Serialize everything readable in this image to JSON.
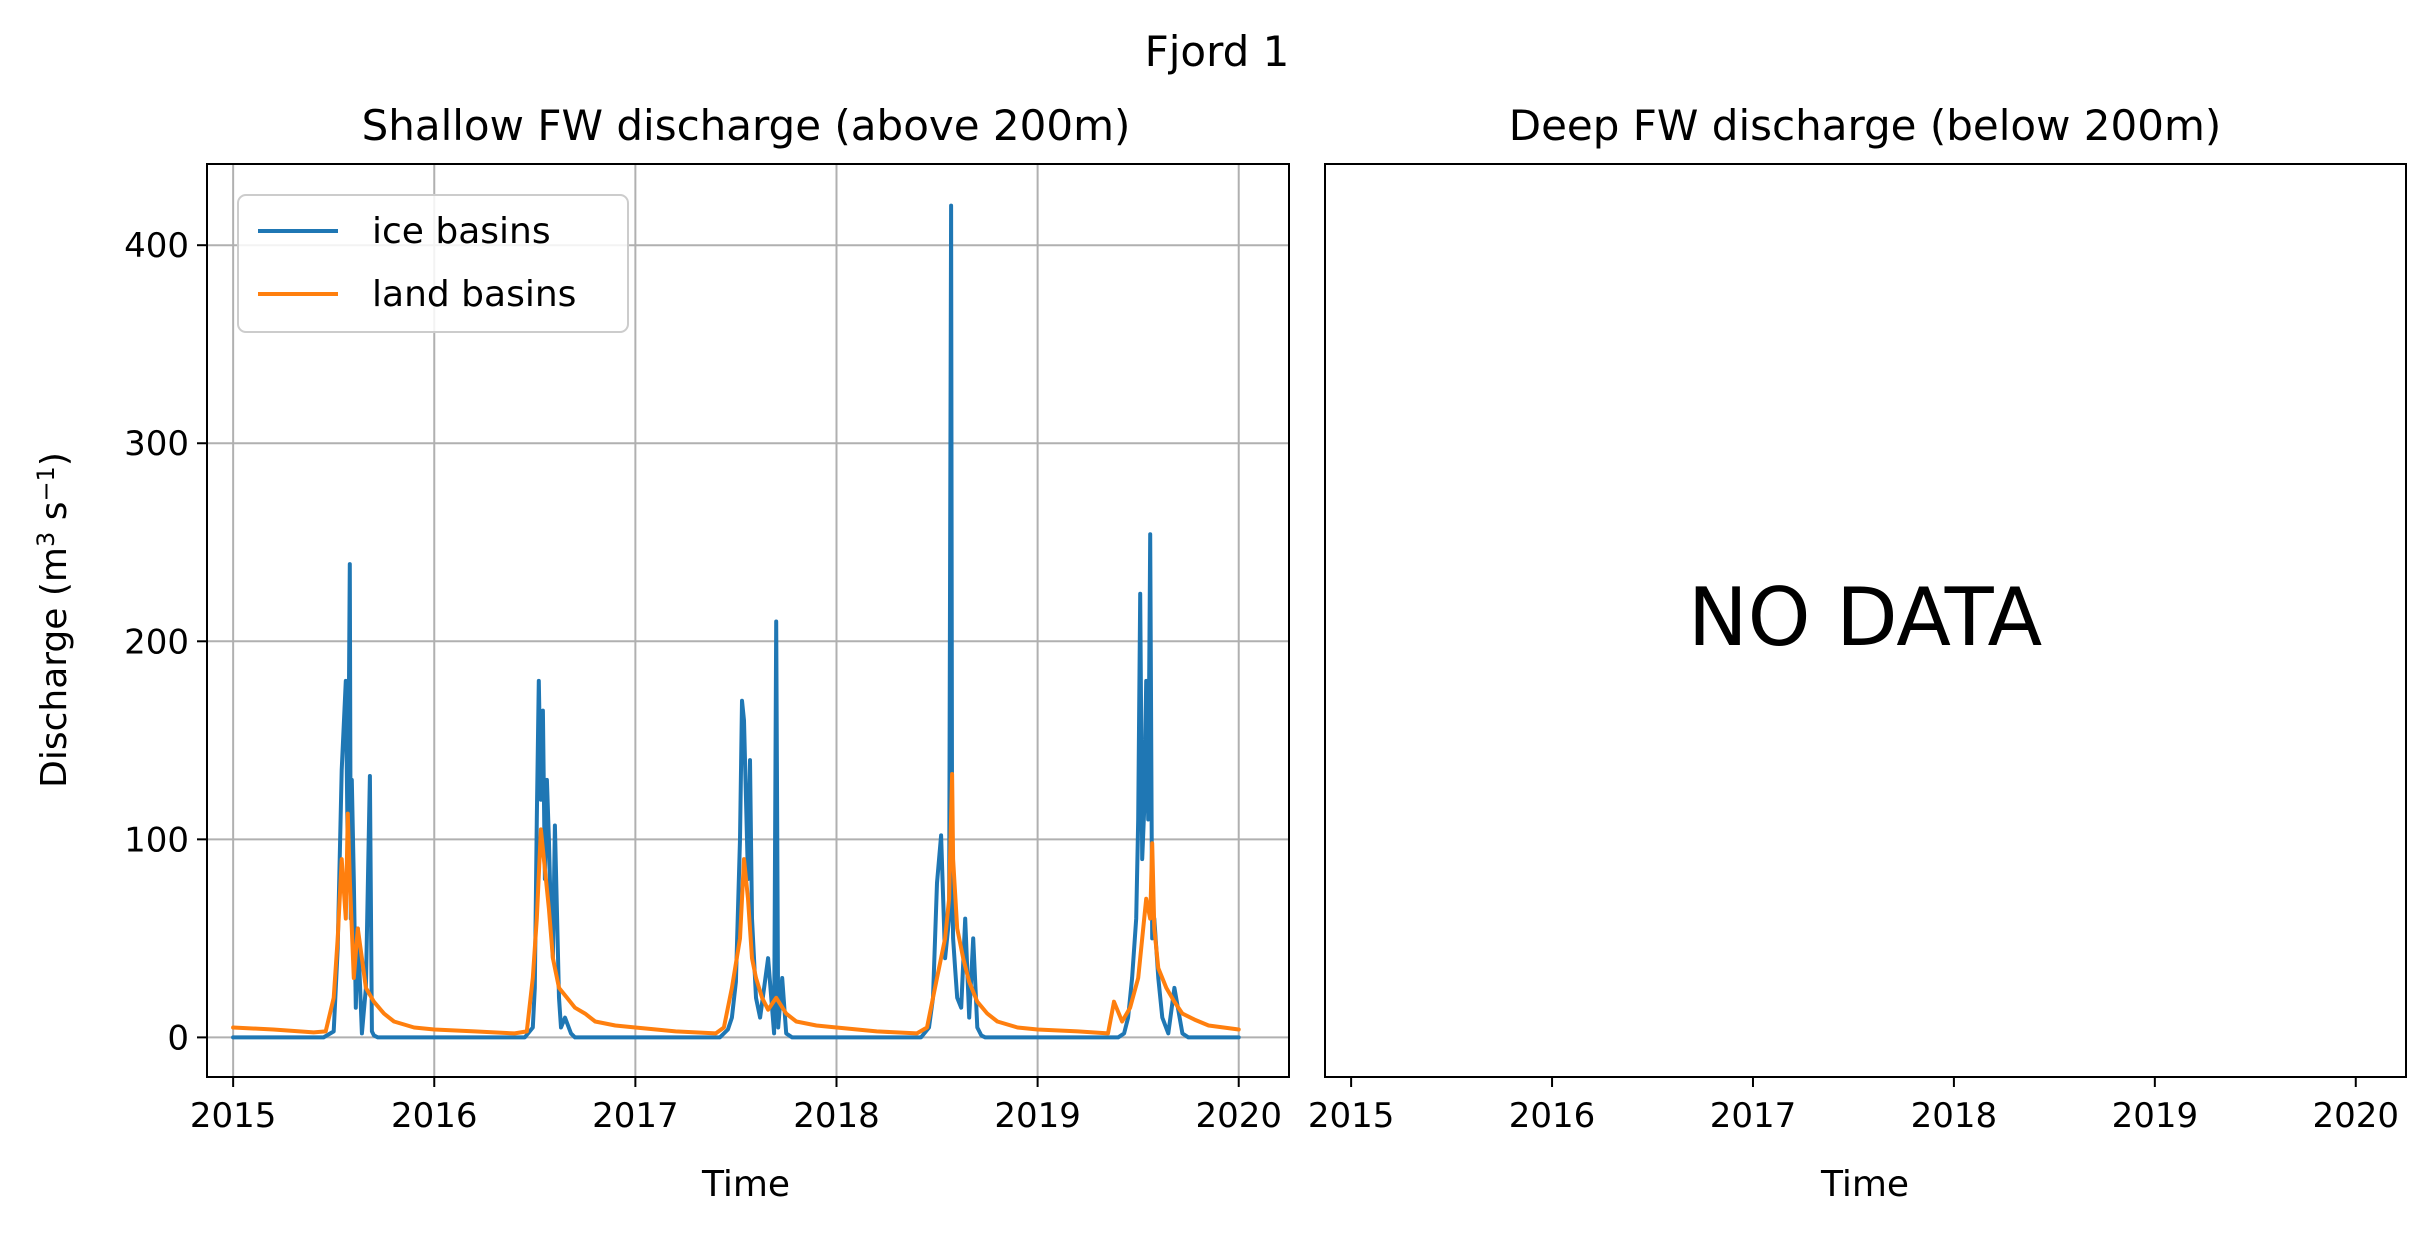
{
  "figure": {
    "suptitle": "Fjord 1"
  },
  "colors": {
    "ice": "#1f77b4",
    "land": "#ff7f0e",
    "grid": "#b0b0b0",
    "axes": "#000000"
  },
  "chart_data": [
    {
      "type": "line",
      "title": "Shallow FW discharge (above 200m)",
      "xlabel": "Time",
      "ylabel_main": "Discharge (m",
      "ylabel_sup3": "3",
      "ylabel_mid": " s",
      "ylabel_supneg": "−1",
      "ylabel_end": ")",
      "xlim": [
        2014.87,
        2020.25
      ],
      "ylim": [
        -20,
        441
      ],
      "x_ticks": [
        2015,
        2016,
        2017,
        2018,
        2019,
        2020
      ],
      "x_tick_labels": [
        "2015",
        "2016",
        "2017",
        "2018",
        "2019",
        "2020"
      ],
      "y_ticks": [
        0,
        100,
        200,
        300,
        400
      ],
      "y_tick_labels": [
        "0",
        "100",
        "200",
        "300",
        "400"
      ],
      "grid": true,
      "legend_position": "top-left",
      "series": [
        {
          "name": "ice basins",
          "color_key": "ice",
          "x": [
            2015.0,
            2015.45,
            2015.5,
            2015.52,
            2015.54,
            2015.56,
            2015.57,
            2015.58,
            2015.585,
            2015.59,
            2015.6,
            2015.61,
            2015.62,
            2015.64,
            2015.66,
            2015.68,
            2015.69,
            2015.7,
            2015.72,
            2015.75,
            2015.8,
            2016.45,
            2016.49,
            2016.5,
            2016.51,
            2016.52,
            2016.53,
            2016.54,
            2016.55,
            2016.56,
            2016.57,
            2016.58,
            2016.59,
            2016.6,
            2016.62,
            2016.63,
            2016.65,
            2016.68,
            2016.7,
            2016.74,
            2016.8,
            2017.42,
            2017.46,
            2017.48,
            2017.5,
            2017.52,
            2017.53,
            2017.54,
            2017.56,
            2017.57,
            2017.58,
            2017.6,
            2017.62,
            2017.66,
            2017.69,
            2017.7,
            2017.71,
            2017.73,
            2017.75,
            2017.78,
            2018.42,
            2018.46,
            2018.48,
            2018.5,
            2018.52,
            2018.54,
            2018.56,
            2018.57,
            2018.575,
            2018.58,
            2018.59,
            2018.6,
            2018.62,
            2018.64,
            2018.66,
            2018.68,
            2018.7,
            2018.72,
            2018.74,
            2018.8,
            2019.4,
            2019.43,
            2019.45,
            2019.47,
            2019.49,
            2019.5,
            2019.51,
            2019.52,
            2019.53,
            2019.54,
            2019.55,
            2019.56,
            2019.57,
            2019.58,
            2019.6,
            2019.62,
            2019.65,
            2019.68,
            2019.72,
            2019.75,
            2020.0
          ],
          "y": [
            0,
            0,
            3,
            45,
            135,
            180,
            90,
            239,
            60,
            130,
            80,
            15,
            55,
            2,
            25,
            132,
            3,
            1,
            0,
            0,
            0,
            0,
            5,
            25,
            110,
            180,
            120,
            165,
            80,
            130,
            100,
            60,
            40,
            107,
            20,
            5,
            10,
            2,
            0,
            0,
            0,
            0,
            4,
            10,
            28,
            100,
            170,
            160,
            80,
            140,
            60,
            20,
            10,
            40,
            2,
            210,
            5,
            30,
            2,
            0,
            0,
            5,
            20,
            78,
            102,
            40,
            60,
            420,
            90,
            50,
            35,
            20,
            15,
            60,
            10,
            50,
            5,
            1,
            0,
            0,
            0,
            2,
            10,
            30,
            60,
            110,
            224,
            90,
            115,
            180,
            110,
            254,
            50,
            60,
            30,
            10,
            2,
            25,
            2,
            0,
            0
          ]
        },
        {
          "name": "land basins",
          "color_key": "land",
          "x": [
            2015.0,
            2015.2,
            2015.4,
            2015.46,
            2015.5,
            2015.52,
            2015.54,
            2015.56,
            2015.57,
            2015.58,
            2015.6,
            2015.62,
            2015.64,
            2015.66,
            2015.7,
            2015.75,
            2015.8,
            2015.9,
            2016.0,
            2016.2,
            2016.4,
            2016.46,
            2016.49,
            2016.51,
            2016.53,
            2016.55,
            2016.57,
            2016.59,
            2016.62,
            2016.66,
            2016.7,
            2016.75,
            2016.8,
            2016.9,
            2017.0,
            2017.2,
            2017.4,
            2017.44,
            2017.48,
            2017.52,
            2017.54,
            2017.56,
            2017.58,
            2017.6,
            2017.63,
            2017.66,
            2017.7,
            2017.75,
            2017.8,
            2017.9,
            2018.0,
            2018.2,
            2018.4,
            2018.45,
            2018.5,
            2018.54,
            2018.56,
            2018.575,
            2018.58,
            2018.6,
            2018.63,
            2018.66,
            2018.7,
            2018.75,
            2018.8,
            2018.9,
            2019.0,
            2019.2,
            2019.35,
            2019.38,
            2019.42,
            2019.46,
            2019.5,
            2019.52,
            2019.54,
            2019.56,
            2019.57,
            2019.58,
            2019.6,
            2019.64,
            2019.68,
            2019.72,
            2019.78,
            2019.85,
            2020.0
          ],
          "y": [
            5,
            4,
            2.5,
            3,
            20,
            50,
            90,
            60,
            113,
            80,
            30,
            55,
            40,
            25,
            18,
            12,
            8,
            5,
            4,
            3,
            2,
            3,
            30,
            60,
            105,
            85,
            65,
            40,
            25,
            20,
            15,
            12,
            8,
            6,
            5,
            3,
            2,
            5,
            25,
            50,
            90,
            70,
            40,
            30,
            20,
            14,
            20,
            12,
            8,
            6,
            5,
            3,
            2,
            5,
            30,
            50,
            70,
            133,
            90,
            55,
            40,
            28,
            18,
            12,
            8,
            5,
            4,
            3,
            2,
            18,
            8,
            15,
            30,
            50,
            70,
            60,
            98,
            55,
            35,
            25,
            18,
            12,
            9,
            6,
            4
          ]
        }
      ]
    },
    {
      "type": "line",
      "title": "Deep FW discharge (below 200m)",
      "xlabel": "Time",
      "xlim": [
        2014.87,
        2020.25
      ],
      "x_ticks": [
        2015,
        2016,
        2017,
        2018,
        2019,
        2020
      ],
      "x_tick_labels": [
        "2015",
        "2016",
        "2017",
        "2018",
        "2019",
        "2020"
      ],
      "grid": false,
      "annotation": "NO DATA",
      "series": []
    }
  ]
}
